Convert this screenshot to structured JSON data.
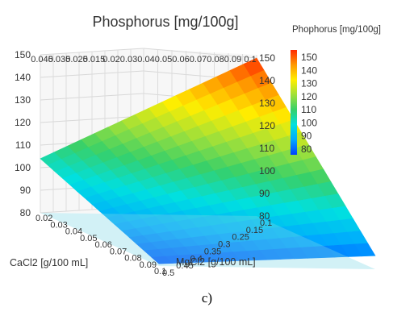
{
  "chart_data": {
    "type": "surface3d",
    "title": "Phosphorus [mg/100g]",
    "xlabel": "CaCl2 [g/100 mL]",
    "ylabel": "MgCl2 [g/100 mL]",
    "zlabel": "",
    "xlim": [
      0.02,
      0.1
    ],
    "ylim": [
      0.1,
      0.5
    ],
    "zlim": [
      80,
      150
    ],
    "z_ticks": [
      "80",
      "90",
      "100",
      "110",
      "120",
      "130",
      "140",
      "150"
    ],
    "ca_ticks_back": [
      "0.045",
      "0.035",
      "0.025",
      "0.015",
      "0.02",
      "0.03",
      "0.04",
      "0.05",
      "0.06",
      "0.07",
      "0.08",
      "0.09",
      "0.1"
    ],
    "ca_ticks_front": [
      "0.02",
      "0.03",
      "0.04",
      "0.05",
      "0.06",
      "0.07",
      "0.08",
      "0.09",
      "0.1"
    ],
    "mg_ticks_front": [
      "0.1",
      "0.15",
      "0.25",
      "0.3",
      "0.35",
      "0.4",
      "0.45",
      "0.5"
    ],
    "surface_corners": [
      {
        "ca": 0.02,
        "mg": 0.1,
        "z": 104
      },
      {
        "ca": 0.02,
        "mg": 0.5,
        "z": 150
      },
      {
        "ca": 0.1,
        "mg": 0.1,
        "z": 81
      },
      {
        "ca": 0.1,
        "mg": 0.5,
        "z": 86
      }
    ],
    "grid": true,
    "colorbar": {
      "title": "Phophorus [mg/100g]",
      "ticks": [
        "150",
        "140",
        "130",
        "120",
        "110",
        "100",
        "90",
        "80"
      ],
      "range": [
        80,
        150
      ],
      "colors": [
        "#ff2a00",
        "#ff9900",
        "#ffee00",
        "#9fe03a",
        "#36d06a",
        "#00e0e0",
        "#00a8ff",
        "#0040ff"
      ]
    }
  },
  "caption": "c)"
}
